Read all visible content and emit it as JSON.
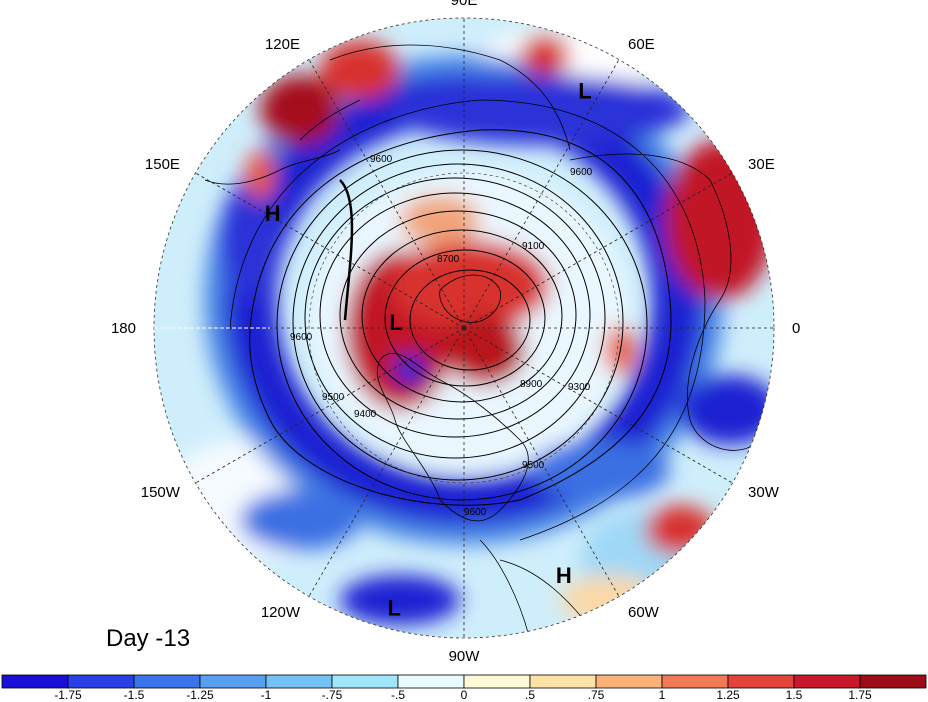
{
  "title": "Day -13",
  "longitude_labels": [
    {
      "text": "90E",
      "angle_deg": 90
    },
    {
      "text": "60E",
      "angle_deg": 60
    },
    {
      "text": "30E",
      "angle_deg": 30
    },
    {
      "text": "0",
      "angle_deg": 0
    },
    {
      "text": "30W",
      "angle_deg": -30
    },
    {
      "text": "60W",
      "angle_deg": -60
    },
    {
      "text": "90W",
      "angle_deg": -90
    },
    {
      "text": "120W",
      "angle_deg": -120
    },
    {
      "text": "150W",
      "angle_deg": -150
    },
    {
      "text": "180",
      "angle_deg": 180
    },
    {
      "text": "150E",
      "angle_deg": 150
    },
    {
      "text": "120E",
      "angle_deg": 120
    }
  ],
  "pressure_centers": [
    {
      "text": "L",
      "lon_deg": 63,
      "lat_frac": 0.86
    },
    {
      "text": "H",
      "lon_deg": 149,
      "lat_frac": 0.72
    },
    {
      "text": "L",
      "lon_deg": 175,
      "lat_frac": 0.22
    },
    {
      "text": "L",
      "lon_deg": -104,
      "lat_frac": 0.93
    },
    {
      "text": "H",
      "lon_deg": -68,
      "lat_frac": 0.86
    }
  ],
  "contour_labels": [
    "8700",
    "8800",
    "8900",
    "9100",
    "9300",
    "9400",
    "9500",
    "9600"
  ],
  "colors": {
    "neg_strong": "#1e1ed2",
    "neg_mid": "#3f7fe0",
    "neg_light": "#8fd6f5",
    "near_zero": "#ffffff",
    "pos_light": "#fbd8a8",
    "pos_mid": "#ea5a3a",
    "pos_strong": "#a60f1b"
  },
  "colorbar": {
    "tick_labels": [
      "-1.75",
      "-1.5",
      "-1.25",
      "-1",
      "-.75",
      "-.5",
      "0",
      ".5",
      ".75",
      "1",
      "1.25",
      "1.5",
      "1.75"
    ],
    "bin_colors": [
      "#1a0fd8",
      "#2b3fe6",
      "#3b73ea",
      "#579ff0",
      "#74c2f5",
      "#9fe6fb",
      "#e8fbff",
      "#fff9d8",
      "#fde4a6",
      "#f8b27a",
      "#f07a55",
      "#e2433a",
      "#c8182a",
      "#9e0b18"
    ]
  }
}
